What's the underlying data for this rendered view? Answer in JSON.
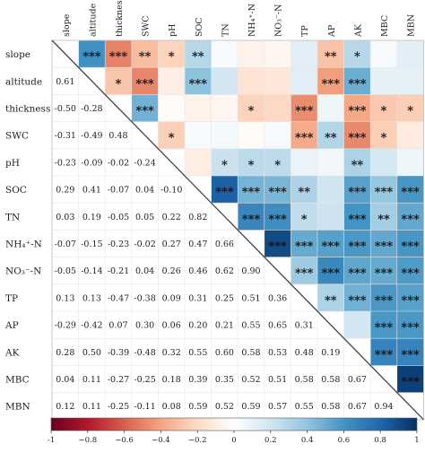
{
  "chart_data": {
    "type": "heatmap",
    "variables": [
      "slope",
      "altitude",
      "thickness",
      "SWC",
      "pH",
      "SOC",
      "TN",
      "NH₄⁺-N",
      "NO₃⁻-N",
      "TP",
      "AP",
      "AK",
      "MBC",
      "MBN"
    ],
    "lower_values": [
      [],
      [
        "0.61"
      ],
      [
        "-0.50",
        "-0.28"
      ],
      [
        "-0.31",
        "-0.49",
        "0.48"
      ],
      [
        "-0.23",
        "-0.09",
        "-0.02",
        "-0.24"
      ],
      [
        "0.29",
        "0.41",
        "-0.07",
        "0.04",
        "-0.10"
      ],
      [
        "0.03",
        "0.19",
        "-0.05",
        "0.05",
        "0.22",
        "0.82"
      ],
      [
        "-0.07",
        "-0.15",
        "-0.23",
        "-0.02",
        "0.27",
        "0.47",
        "0.66"
      ],
      [
        "-0.05",
        "-0.14",
        "-0.21",
        "0.04",
        "0.26",
        "0.46",
        "0.62",
        "0.90"
      ],
      [
        "0.13",
        "0.13",
        "-0.47",
        "-0.38",
        "0.09",
        "0.31",
        "0.25",
        "0.51",
        "0.36"
      ],
      [
        "-0.29",
        "-0.42",
        "0.07",
        "0.30",
        "0.06",
        "0.20",
        "0.21",
        "0.55",
        "0.65",
        "0.31"
      ],
      [
        "0.28",
        "0.50",
        "-0.39",
        "-0.48",
        "0.32",
        "0.55",
        "0.60",
        "0.58",
        "0.53",
        "0.48",
        "0.19"
      ],
      [
        "0.04",
        "0.11",
        "-0.27",
        "-0.25",
        "0.18",
        "0.39",
        "0.35",
        "0.52",
        "0.51",
        "0.58",
        "0.58",
        "0.67"
      ],
      [
        "0.12",
        "0.11",
        "-0.25",
        "-0.11",
        "0.08",
        "0.59",
        "0.52",
        "0.59",
        "0.57",
        "0.55",
        "0.58",
        "0.67",
        "0.94"
      ]
    ],
    "upper_stars": [
      [
        "",
        "***",
        "***",
        "**",
        "*",
        "**",
        "",
        "",
        "",
        "",
        "**",
        "*",
        "",
        ""
      ],
      [
        "",
        "",
        "*",
        "***",
        "",
        "***",
        "",
        "",
        "",
        "",
        "***",
        "***",
        "",
        ""
      ],
      [
        "",
        "",
        "",
        "***",
        "",
        "",
        "",
        "*",
        "",
        "***",
        "",
        "***",
        "*",
        "*"
      ],
      [
        "",
        "",
        "",
        "",
        "*",
        "",
        "",
        "",
        "",
        "***",
        "**",
        "***",
        "*",
        ""
      ],
      [
        "",
        "",
        "",
        "",
        "",
        "",
        "*",
        "*",
        "*",
        "",
        "",
        "**",
        "",
        ""
      ],
      [
        "",
        "",
        "",
        "",
        "",
        "",
        "***",
        "***",
        "***",
        "**",
        "",
        "***",
        "***",
        "***"
      ],
      [
        "",
        "",
        "",
        "",
        "",
        "",
        "",
        "***",
        "***",
        "*",
        "",
        "***",
        "**",
        "***"
      ],
      [
        "",
        "",
        "",
        "",
        "",
        "",
        "",
        "",
        "***",
        "***",
        "***",
        "***",
        "***",
        "***"
      ],
      [
        "",
        "",
        "",
        "",
        "",
        "",
        "",
        "",
        "",
        "***",
        "***",
        "***",
        "***",
        "***"
      ],
      [
        "",
        "",
        "",
        "",
        "",
        "",
        "",
        "",
        "",
        "",
        "**",
        "***",
        "***",
        "***"
      ],
      [
        "",
        "",
        "",
        "",
        "",
        "",
        "",
        "",
        "",
        "",
        "",
        "",
        "***",
        "***"
      ],
      [
        "",
        "",
        "",
        "",
        "",
        "",
        "",
        "",
        "",
        "",
        "",
        "",
        "***",
        "***"
      ],
      [
        "",
        "",
        "",
        "",
        "",
        "",
        "",
        "",
        "",
        "",
        "",
        "",
        "",
        "***"
      ],
      [
        "",
        "",
        "",
        "",
        "",
        "",
        "",
        "",
        "",
        "",
        "",
        "",
        "",
        ""
      ]
    ],
    "colorbar": {
      "range": [
        -1,
        1
      ],
      "ticks": [
        "-1",
        "−0.8",
        "−0.6",
        "−0.4",
        "−0.2",
        "0",
        "0.2",
        "0.4",
        "0.6",
        "0.8",
        "1"
      ],
      "colors": [
        "#67001f",
        "#b2182b",
        "#d6604d",
        "#f4a582",
        "#fddbc7",
        "#ffffff",
        "#d1e5f0",
        "#92c5de",
        "#4393c3",
        "#2166ac",
        "#053061"
      ]
    }
  }
}
